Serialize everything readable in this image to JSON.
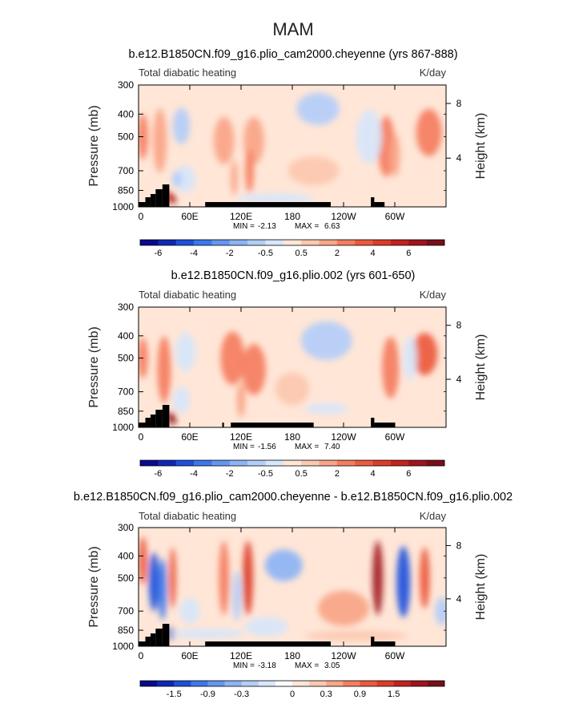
{
  "figure_title": "MAM",
  "chart_data": [
    {
      "type": "heatmap",
      "title": "b.e12.B1850CN.f09_g16.plio_cam2000.cheyenne (yrs 867-888)",
      "left_label": "Total diabatic heating",
      "units": "K/day",
      "ylabel": "Pressure (mb)",
      "ylabel_right": "Height (km)",
      "y_ticks": [
        "300",
        "400",
        "500",
        "700",
        "850",
        "1000"
      ],
      "y_tick_values": [
        300,
        400,
        500,
        700,
        850,
        1000
      ],
      "height_ticks": [
        "8",
        "4"
      ],
      "height_tick_values": [
        8,
        4
      ],
      "x_ticks": [
        "0",
        "60E",
        "120E",
        "180",
        "120W",
        "60W"
      ],
      "x_tick_values": [
        0,
        60,
        120,
        180,
        240,
        300
      ],
      "xlim": [
        0,
        360
      ],
      "ylim": [
        1000,
        300
      ],
      "min_label": "MIN =",
      "min_value": "-2.13",
      "max_label": "MAX =",
      "max_value": "6.63",
      "colorbar_labels": [
        "-6",
        "-4",
        "-2",
        "-0.5",
        "0.5",
        "2",
        "4",
        "6"
      ],
      "colorbar_colors": [
        "#0a0a8c",
        "#0f28b4",
        "#1e50dc",
        "#3c78eb",
        "#6496f0",
        "#8cb4f5",
        "#b4cdf8",
        "#d7e6fa",
        "#ffe6d7",
        "#fcc8af",
        "#f9a587",
        "#f57d5f",
        "#ec5a3c",
        "#dc3c28",
        "#c3231e",
        "#a0141e",
        "#780f19"
      ],
      "features": [
        {
          "x": 5,
          "p": 500,
          "w": 6,
          "h": 220,
          "v": 2.5
        },
        {
          "x": 25,
          "p": 520,
          "w": 8,
          "h": 320,
          "v": 2.0
        },
        {
          "x": 35,
          "p": 900,
          "w": 5,
          "h": 90,
          "v": 4.5
        },
        {
          "x": 40,
          "p": 930,
          "w": 3,
          "h": 60,
          "v": 6.5
        },
        {
          "x": 50,
          "p": 450,
          "w": 10,
          "h": 160,
          "v": -1.4
        },
        {
          "x": 55,
          "p": 760,
          "w": 12,
          "h": 200,
          "v": -1.2
        },
        {
          "x": 45,
          "p": 760,
          "w": 6,
          "h": 120,
          "v": -1.6
        },
        {
          "x": 100,
          "p": 520,
          "w": 12,
          "h": 240,
          "v": 2.0
        },
        {
          "x": 135,
          "p": 520,
          "w": 12,
          "h": 240,
          "v": 1.8
        },
        {
          "x": 130,
          "p": 700,
          "w": 5,
          "h": 300,
          "v": 2.2
        },
        {
          "x": 112,
          "p": 750,
          "w": 4,
          "h": 260,
          "v": 1.8
        },
        {
          "x": 210,
          "p": 380,
          "w": 25,
          "h": 120,
          "v": -1.4
        },
        {
          "x": 205,
          "p": 700,
          "w": 30,
          "h": 200,
          "v": 0.8
        },
        {
          "x": 160,
          "p": 920,
          "w": 45,
          "h": 80,
          "v": -0.6
        },
        {
          "x": 290,
          "p": 550,
          "w": 10,
          "h": 320,
          "v": 2.6
        },
        {
          "x": 300,
          "p": 600,
          "w": 6,
          "h": 250,
          "v": 2.0
        },
        {
          "x": 340,
          "p": 480,
          "w": 15,
          "h": 220,
          "v": 2.6
        },
        {
          "x": 270,
          "p": 500,
          "w": 15,
          "h": 260,
          "v": -0.9
        }
      ]
    },
    {
      "type": "heatmap",
      "title": "b.e12.B1850CN.f09_g16.plio.002 (yrs 601-650)",
      "left_label": "Total diabatic heating",
      "units": "K/day",
      "ylabel": "Pressure (mb)",
      "ylabel_right": "Height (km)",
      "y_ticks": [
        "300",
        "400",
        "500",
        "700",
        "850",
        "1000"
      ],
      "y_tick_values": [
        300,
        400,
        500,
        700,
        850,
        1000
      ],
      "height_ticks": [
        "8",
        "4"
      ],
      "height_tick_values": [
        8,
        4
      ],
      "x_ticks": [
        "0",
        "60E",
        "120E",
        "180",
        "120W",
        "60W"
      ],
      "x_tick_values": [
        0,
        60,
        120,
        180,
        240,
        300
      ],
      "xlim": [
        0,
        360
      ],
      "ylim": [
        1000,
        300
      ],
      "min_label": "MIN =",
      "min_value": "-1.56",
      "max_label": "MAX =",
      "max_value": "7.40",
      "colorbar_labels": [
        "-6",
        "-4",
        "-2",
        "-0.5",
        "0.5",
        "2",
        "4",
        "6"
      ],
      "colorbar_colors": [
        "#0a0a8c",
        "#0f28b4",
        "#1e50dc",
        "#3c78eb",
        "#6496f0",
        "#8cb4f5",
        "#b4cdf8",
        "#d7e6fa",
        "#ffe6d7",
        "#fcc8af",
        "#f9a587",
        "#f57d5f",
        "#ec5a3c",
        "#dc3c28",
        "#c3231e",
        "#a0141e",
        "#780f19"
      ],
      "features": [
        {
          "x": 5,
          "p": 500,
          "w": 6,
          "h": 200,
          "v": 2.2
        },
        {
          "x": 30,
          "p": 560,
          "w": 8,
          "h": 360,
          "v": 2.4
        },
        {
          "x": 38,
          "p": 900,
          "w": 5,
          "h": 90,
          "v": 5.0
        },
        {
          "x": 40,
          "p": 930,
          "w": 3,
          "h": 60,
          "v": 7.0
        },
        {
          "x": 55,
          "p": 470,
          "w": 12,
          "h": 180,
          "v": -1.3
        },
        {
          "x": 50,
          "p": 760,
          "w": 10,
          "h": 200,
          "v": -1.0
        },
        {
          "x": 110,
          "p": 500,
          "w": 14,
          "h": 260,
          "v": 2.4
        },
        {
          "x": 135,
          "p": 560,
          "w": 14,
          "h": 280,
          "v": 2.2
        },
        {
          "x": 120,
          "p": 760,
          "w": 5,
          "h": 260,
          "v": 2.0
        },
        {
          "x": 220,
          "p": 420,
          "w": 30,
          "h": 160,
          "v": -1.5
        },
        {
          "x": 220,
          "p": 830,
          "w": 25,
          "h": 90,
          "v": -0.5
        },
        {
          "x": 180,
          "p": 680,
          "w": 20,
          "h": 220,
          "v": 0.5
        },
        {
          "x": 295,
          "p": 550,
          "w": 10,
          "h": 330,
          "v": 2.8
        },
        {
          "x": 335,
          "p": 480,
          "w": 15,
          "h": 200,
          "v": 3.2
        },
        {
          "x": 318,
          "p": 500,
          "w": 8,
          "h": 220,
          "v": -0.6
        },
        {
          "x": 90,
          "p": 800,
          "w": 20,
          "h": 200,
          "v": -0.3
        }
      ]
    },
    {
      "type": "heatmap",
      "title": "b.e12.B1850CN.f09_g16.plio_cam2000.cheyenne - b.e12.B1850CN.f09_g16.plio.002",
      "left_label": "Total diabatic heating",
      "units": "K/day",
      "ylabel": "Pressure (mb)",
      "ylabel_right": "Height (km)",
      "y_ticks": [
        "300",
        "400",
        "500",
        "700",
        "850",
        "1000"
      ],
      "y_tick_values": [
        300,
        400,
        500,
        700,
        850,
        1000
      ],
      "height_ticks": [
        "8",
        "4"
      ],
      "height_tick_values": [
        8,
        4
      ],
      "x_ticks": [
        "0",
        "60E",
        "120E",
        "180",
        "120W",
        "60W"
      ],
      "x_tick_values": [
        0,
        60,
        120,
        180,
        240,
        300
      ],
      "xlim": [
        0,
        360
      ],
      "ylim": [
        1000,
        300
      ],
      "min_label": "MIN =",
      "min_value": "-3.18",
      "max_label": "MAX =",
      "max_value": "3.05",
      "colorbar_labels": [
        "-1.5",
        "-0.9",
        "-0.3",
        "0",
        "0.3",
        "0.9",
        "1.5"
      ],
      "colorbar_colors": [
        "#0a0a8c",
        "#0f28b4",
        "#1e50dc",
        "#3c78eb",
        "#6496f0",
        "#8cb4f5",
        "#b4cdf8",
        "#d7e6fa",
        "#ffffff",
        "#ffe6d7",
        "#fcc8af",
        "#f9a587",
        "#f57d5f",
        "#ec5a3c",
        "#dc3c28",
        "#c3231e",
        "#a0141e",
        "#780f19"
      ],
      "features": [
        {
          "x": 5,
          "p": 420,
          "w": 5,
          "h": 200,
          "v": 1.5
        },
        {
          "x": 18,
          "p": 520,
          "w": 6,
          "h": 300,
          "v": -2.2
        },
        {
          "x": 28,
          "p": 560,
          "w": 5,
          "h": 340,
          "v": -1.8
        },
        {
          "x": 38,
          "p": 880,
          "w": 5,
          "h": 100,
          "v": -2.8
        },
        {
          "x": 40,
          "p": 500,
          "w": 4,
          "h": 300,
          "v": 1.6
        },
        {
          "x": 100,
          "p": 500,
          "w": 6,
          "h": 360,
          "v": 1.2
        },
        {
          "x": 128,
          "p": 500,
          "w": 6,
          "h": 360,
          "v": 1.8
        },
        {
          "x": 115,
          "p": 600,
          "w": 5,
          "h": 300,
          "v": -0.9
        },
        {
          "x": 170,
          "p": 440,
          "w": 22,
          "h": 140,
          "v": -1.1
        },
        {
          "x": 240,
          "p": 680,
          "w": 30,
          "h": 240,
          "v": 1.0
        },
        {
          "x": 255,
          "p": 900,
          "w": 60,
          "h": 70,
          "v": 0.6
        },
        {
          "x": 280,
          "p": 500,
          "w": 6,
          "h": 360,
          "v": 2.8
        },
        {
          "x": 310,
          "p": 520,
          "w": 8,
          "h": 360,
          "v": -2.4
        },
        {
          "x": 335,
          "p": 500,
          "w": 6,
          "h": 300,
          "v": 1.5
        },
        {
          "x": 355,
          "p": 700,
          "w": 8,
          "h": 200,
          "v": -1.0
        },
        {
          "x": 60,
          "p": 700,
          "w": 12,
          "h": 180,
          "v": -0.6
        },
        {
          "x": 80,
          "p": 880,
          "w": 45,
          "h": 60,
          "v": -0.4
        },
        {
          "x": 150,
          "p": 820,
          "w": 25,
          "h": 160,
          "v": -0.4
        }
      ]
    }
  ]
}
